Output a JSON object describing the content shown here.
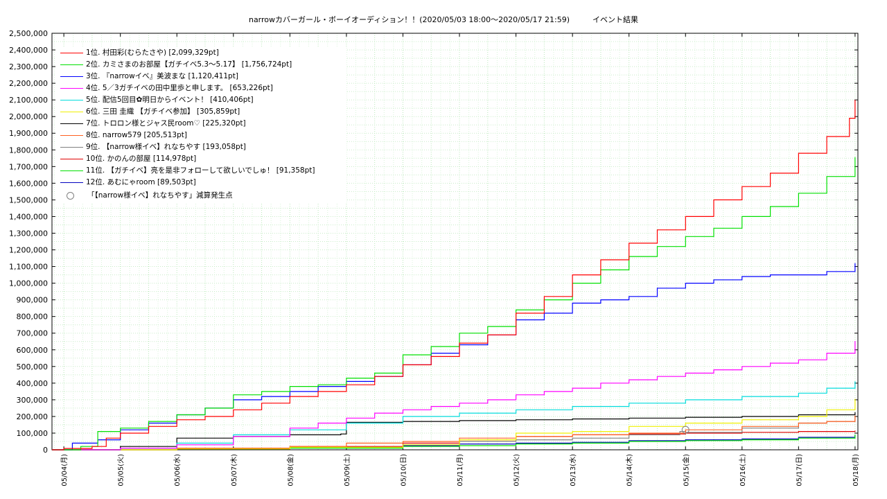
{
  "title": "narrowカバーガール・ボーイオーディション！！(2020/05/03 18:00～2020/05/17 21:59)　　　イベント結果",
  "chart_data": {
    "type": "line",
    "title": "narrowカバーガール・ボーイオーディション！！(2020/05/03 18:00～2020/05/17 21:59)　　　イベント結果",
    "x_tick_labels": [
      "05/04(月)",
      "05/05(火)",
      "05/06(水)",
      "05/07(木)",
      "05/08(金)",
      "05/09(土)",
      "05/10(日)",
      "05/11(月)",
      "05/12(火)",
      "05/13(水)",
      "05/14(木)",
      "05/15(金)",
      "05/16(土)",
      "05/17(日)",
      "05/18(月)"
    ],
    "x_range_days": [
      -0.21,
      14.05
    ],
    "ylim": [
      0,
      2500000
    ],
    "y_tick_step": 100000,
    "grid": true,
    "legend_position": "top-left",
    "marker": {
      "label": "「【narrow様イベ】れなちやす」減算発生点",
      "day": 11.0,
      "value": 120000,
      "color": "#808080"
    },
    "series": [
      {
        "name": "1位. 村田彩(むらたさや) [2,099,329pt]",
        "color": "#ff0000",
        "points": [
          [
            -0.21,
            0
          ],
          [
            0,
            8000
          ],
          [
            0.5,
            20000
          ],
          [
            0.75,
            70000
          ],
          [
            1,
            100000
          ],
          [
            1.5,
            140000
          ],
          [
            2,
            180000
          ],
          [
            2.5,
            200000
          ],
          [
            3,
            240000
          ],
          [
            3.5,
            280000
          ],
          [
            4,
            320000
          ],
          [
            4.5,
            350000
          ],
          [
            5,
            390000
          ],
          [
            5.5,
            440000
          ],
          [
            6,
            510000
          ],
          [
            6.5,
            560000
          ],
          [
            7,
            640000
          ],
          [
            7.5,
            690000
          ],
          [
            8,
            820000
          ],
          [
            8.5,
            920000
          ],
          [
            9,
            1050000
          ],
          [
            9.5,
            1140000
          ],
          [
            10,
            1240000
          ],
          [
            10.5,
            1320000
          ],
          [
            11,
            1400000
          ],
          [
            11.5,
            1500000
          ],
          [
            12,
            1580000
          ],
          [
            12.5,
            1660000
          ],
          [
            13,
            1780000
          ],
          [
            13.5,
            1880000
          ],
          [
            13.9,
            1990000
          ],
          [
            14.0,
            2099329
          ]
        ]
      },
      {
        "name": "2位. カミさまのお部屋【ガチイベ5.3〜5.17】 [1,756,724pt]",
        "color": "#00e000",
        "points": [
          [
            -0.21,
            0
          ],
          [
            0.3,
            20000
          ],
          [
            0.6,
            110000
          ],
          [
            1,
            130000
          ],
          [
            1.5,
            170000
          ],
          [
            2,
            210000
          ],
          [
            2.5,
            250000
          ],
          [
            3,
            330000
          ],
          [
            3.5,
            350000
          ],
          [
            4,
            380000
          ],
          [
            4.5,
            390000
          ],
          [
            5,
            430000
          ],
          [
            5.5,
            460000
          ],
          [
            6,
            570000
          ],
          [
            6.5,
            620000
          ],
          [
            7,
            700000
          ],
          [
            7.5,
            740000
          ],
          [
            8,
            840000
          ],
          [
            8.5,
            900000
          ],
          [
            9,
            1000000
          ],
          [
            9.5,
            1080000
          ],
          [
            10,
            1160000
          ],
          [
            10.5,
            1220000
          ],
          [
            11,
            1280000
          ],
          [
            11.5,
            1330000
          ],
          [
            12,
            1400000
          ],
          [
            12.5,
            1460000
          ],
          [
            13,
            1540000
          ],
          [
            13.5,
            1640000
          ],
          [
            14.0,
            1756724
          ]
        ]
      },
      {
        "name": "3位. 『narrowイベ』美波まな [1,120,411pt]",
        "color": "#0000ff",
        "points": [
          [
            -0.21,
            0
          ],
          [
            0.15,
            40000
          ],
          [
            0.6,
            60000
          ],
          [
            1,
            120000
          ],
          [
            1.5,
            160000
          ],
          [
            2,
            210000
          ],
          [
            2.5,
            250000
          ],
          [
            3,
            300000
          ],
          [
            3.5,
            320000
          ],
          [
            4,
            350000
          ],
          [
            4.5,
            380000
          ],
          [
            5,
            410000
          ],
          [
            5.5,
            440000
          ],
          [
            6,
            510000
          ],
          [
            6.5,
            580000
          ],
          [
            7,
            630000
          ],
          [
            7.5,
            690000
          ],
          [
            8,
            780000
          ],
          [
            8.5,
            820000
          ],
          [
            9,
            880000
          ],
          [
            9.5,
            900000
          ],
          [
            10,
            920000
          ],
          [
            10.5,
            970000
          ],
          [
            11,
            1000000
          ],
          [
            11.5,
            1020000
          ],
          [
            12,
            1040000
          ],
          [
            12.5,
            1050000
          ],
          [
            13,
            1050000
          ],
          [
            13.5,
            1070000
          ],
          [
            14.0,
            1120411
          ]
        ]
      },
      {
        "name": "4位. 5／3ガチイベの田中里歩と申します。 [653,226pt]",
        "color": "#ff00ff",
        "points": [
          [
            -0.21,
            0
          ],
          [
            1,
            10000
          ],
          [
            2,
            30000
          ],
          [
            3,
            80000
          ],
          [
            4,
            130000
          ],
          [
            4.5,
            160000
          ],
          [
            5,
            190000
          ],
          [
            5.5,
            220000
          ],
          [
            6,
            240000
          ],
          [
            6.5,
            260000
          ],
          [
            7,
            280000
          ],
          [
            7.5,
            300000
          ],
          [
            8,
            330000
          ],
          [
            8.5,
            350000
          ],
          [
            9,
            370000
          ],
          [
            9.5,
            400000
          ],
          [
            10,
            420000
          ],
          [
            10.5,
            440000
          ],
          [
            11,
            460000
          ],
          [
            11.5,
            480000
          ],
          [
            12,
            500000
          ],
          [
            12.5,
            520000
          ],
          [
            13,
            540000
          ],
          [
            13.5,
            580000
          ],
          [
            14.0,
            653226
          ]
        ]
      },
      {
        "name": "5位. 配信5回目✿明日からイベント！ [410,406pt]",
        "color": "#00dcdc",
        "points": [
          [
            -0.21,
            0
          ],
          [
            1,
            10000
          ],
          [
            2,
            40000
          ],
          [
            3,
            90000
          ],
          [
            4,
            120000
          ],
          [
            5,
            160000
          ],
          [
            6,
            200000
          ],
          [
            7,
            220000
          ],
          [
            8,
            240000
          ],
          [
            9,
            260000
          ],
          [
            10,
            280000
          ],
          [
            11,
            300000
          ],
          [
            12,
            320000
          ],
          [
            13,
            340000
          ],
          [
            13.5,
            370000
          ],
          [
            14.0,
            410406
          ]
        ]
      },
      {
        "name": "6位. 三田 圭織 【ガチイベ参加】 [305,859pt]",
        "color": "#f0f000",
        "points": [
          [
            -0.21,
            0
          ],
          [
            2,
            5000
          ],
          [
            4,
            15000
          ],
          [
            6,
            30000
          ],
          [
            7,
            60000
          ],
          [
            8,
            100000
          ],
          [
            9,
            110000
          ],
          [
            10,
            140000
          ],
          [
            11,
            160000
          ],
          [
            12,
            180000
          ],
          [
            13,
            200000
          ],
          [
            13.5,
            240000
          ],
          [
            14.0,
            305859
          ]
        ]
      },
      {
        "name": "7位. トロロン様とジャス民room♡ [225,320pt]",
        "color": "#000000",
        "points": [
          [
            -0.21,
            0
          ],
          [
            1,
            20000
          ],
          [
            2,
            70000
          ],
          [
            3,
            80000
          ],
          [
            4,
            90000
          ],
          [
            4.9,
            95000
          ],
          [
            5,
            165000
          ],
          [
            6,
            170000
          ],
          [
            7,
            175000
          ],
          [
            8,
            180000
          ],
          [
            9,
            185000
          ],
          [
            10,
            190000
          ],
          [
            11,
            195000
          ],
          [
            12,
            200000
          ],
          [
            13,
            210000
          ],
          [
            14.0,
            225320
          ]
        ]
      },
      {
        "name": "8位. narrow579 [205,513pt]",
        "color": "#ff6020",
        "points": [
          [
            -0.21,
            0
          ],
          [
            2,
            10000
          ],
          [
            4,
            20000
          ],
          [
            5,
            40000
          ],
          [
            6,
            50000
          ],
          [
            7,
            70000
          ],
          [
            8,
            80000
          ],
          [
            9,
            90000
          ],
          [
            10,
            100000
          ],
          [
            11,
            120000
          ],
          [
            12,
            140000
          ],
          [
            13,
            160000
          ],
          [
            13.5,
            170000
          ],
          [
            14.0,
            205513
          ]
        ]
      },
      {
        "name": "9位. 【narrow様イベ】れなちやす [193,058pt]",
        "color": "#808080",
        "points": [
          [
            -0.21,
            0
          ],
          [
            2,
            5000
          ],
          [
            4,
            15000
          ],
          [
            6,
            30000
          ],
          [
            7,
            50000
          ],
          [
            8,
            60000
          ],
          [
            9,
            70000
          ],
          [
            10,
            90000
          ],
          [
            10.9,
            110000
          ],
          [
            11,
            105000
          ],
          [
            12,
            130000
          ],
          [
            13,
            160000
          ],
          [
            13.5,
            170000
          ],
          [
            14.0,
            193058
          ]
        ]
      },
      {
        "name": "10位. かのんの部屋 [114,978pt]",
        "color": "#e00000",
        "points": [
          [
            -0.21,
            0
          ],
          [
            2,
            10000
          ],
          [
            4,
            20000
          ],
          [
            6,
            40000
          ],
          [
            7,
            60000
          ],
          [
            8,
            80000
          ],
          [
            9,
            90000
          ],
          [
            10,
            95000
          ],
          [
            11,
            100000
          ],
          [
            12,
            105000
          ],
          [
            13,
            110000
          ],
          [
            14.0,
            114978
          ]
        ]
      },
      {
        "name": "11位. 【ガチイベ】亮を是非フォローして欲しいでしゅ！ [91,358pt]",
        "color": "#00e000",
        "points": [
          [
            -0.21,
            0
          ],
          [
            2,
            5000
          ],
          [
            4,
            10000
          ],
          [
            6,
            20000
          ],
          [
            7,
            25000
          ],
          [
            8,
            35000
          ],
          [
            9,
            40000
          ],
          [
            10,
            50000
          ],
          [
            11,
            55000
          ],
          [
            12,
            60000
          ],
          [
            13,
            70000
          ],
          [
            14.0,
            91358
          ]
        ]
      },
      {
        "name": "12位. あむにゃroom [89,503pt]",
        "color": "#0000c0",
        "points": [
          [
            -0.21,
            0
          ],
          [
            2,
            8000
          ],
          [
            4,
            15000
          ],
          [
            6,
            25000
          ],
          [
            7,
            35000
          ],
          [
            8,
            40000
          ],
          [
            9,
            45000
          ],
          [
            10,
            55000
          ],
          [
            11,
            60000
          ],
          [
            12,
            65000
          ],
          [
            13,
            75000
          ],
          [
            14.0,
            89503
          ]
        ]
      }
    ]
  }
}
